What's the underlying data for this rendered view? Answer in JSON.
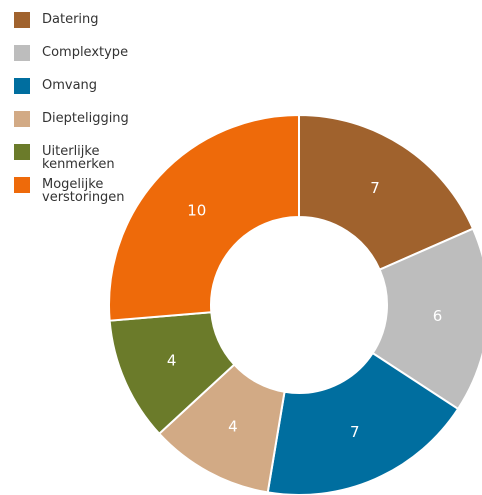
{
  "chart_data": {
    "type": "donut",
    "categories": [
      "Datering",
      "Complextype",
      "Omvang",
      "Diepteligging",
      "Uiterlijke kenmerken",
      "Mogelijke verstoringen"
    ],
    "values": [
      7,
      6,
      7,
      4,
      4,
      10
    ],
    "colors": [
      "#a0622d",
      "#bdbdbd",
      "#006e9f",
      "#d2aa85",
      "#6b7b2a",
      "#ee6a0a"
    ]
  }
}
